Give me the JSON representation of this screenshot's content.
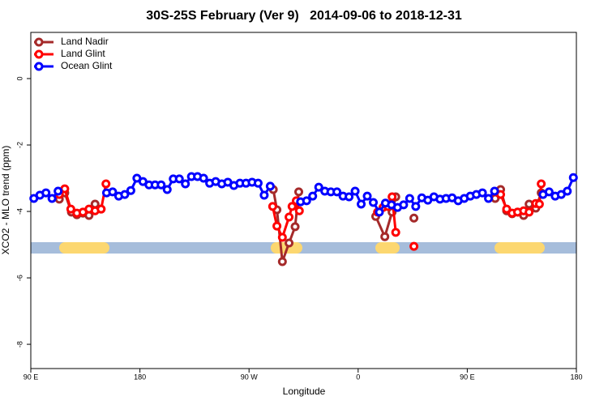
{
  "chart_data": {
    "type": "line",
    "title": "30S-25S February (Ver 9)   2014-09-06 to 2018-12-31",
    "x_label": "Longitude",
    "y_label": "XCO2 - MLO trend (ppm)",
    "xlim": [
      90,
      540
    ],
    "ylim": [
      -8.73,
      1.39
    ],
    "xticks": [
      {
        "value": 90,
        "label": "90 E"
      },
      180,
      {
        "value": 270,
        "label": "90 W"
      },
      {
        "value": 360,
        "label": "0"
      },
      {
        "value": 450,
        "label": "90 E"
      },
      {
        "value": 540,
        "label": "180"
      }
    ],
    "yticks": [
      0,
      -2,
      -4,
      -6,
      -8
    ],
    "legend": "top-left",
    "series": [
      {
        "name": "Land Nadir",
        "color": "#a52a2a",
        "x": [
          113.5,
          118,
          123.5,
          128,
          133,
          138,
          143,
          148,
          null,
          290,
          293,
          297.5,
          303,
          308,
          311,
          null,
          374.5,
          382,
          388,
          391,
          null,
          406,
          null,
          473,
          477.5,
          482.5,
          487,
          491.5,
          496.5,
          501,
          506.5,
          511
        ],
        "values": [
          -3.63,
          -3.44,
          -4.02,
          -4.1,
          -4.05,
          -4.12,
          -3.78,
          -3.93,
          null,
          -3.34,
          -3.95,
          -5.51,
          -4.95,
          -4.46,
          -3.41,
          null,
          -4.15,
          -4.76,
          -4.02,
          -3.56,
          null,
          -4.2,
          null,
          -3.61,
          -3.34,
          -3.98,
          -4.07,
          -4.02,
          -4.12,
          -3.78,
          -3.9,
          -3.44
        ]
      },
      {
        "name": "Land Glint",
        "color": "#ff0000",
        "x": [
          113.5,
          118,
          123,
          128,
          133,
          138,
          143,
          148,
          152,
          null,
          289.5,
          293,
          297.5,
          303,
          305.5,
          309,
          311.5,
          null,
          376,
          380.5,
          384.5,
          388,
          391,
          null,
          406,
          null,
          473,
          477.5,
          482.5,
          487,
          491.5,
          496.5,
          501,
          506.5,
          509.5,
          511
        ],
        "values": [
          -3.49,
          -3.32,
          -3.93,
          -4.05,
          -4.02,
          -3.93,
          -3.98,
          -3.93,
          -3.17,
          null,
          -3.85,
          -4.44,
          -4.78,
          -4.17,
          -3.85,
          -3.68,
          -3.98,
          null,
          -4.02,
          -3.88,
          -3.85,
          -3.56,
          -4.63,
          null,
          -5.05,
          null,
          -3.41,
          -3.49,
          -3.93,
          -4.05,
          -4.02,
          -3.98,
          -4.02,
          -3.76,
          -3.78,
          -3.17
        ]
      },
      {
        "name": "Ocean Glint",
        "color": "#0000ff",
        "x": [
          92.5,
          97.5,
          102.5,
          107.5,
          112.5,
          117.5,
          122.5,
          127.5,
          132.5,
          137.5,
          142.5,
          147.5,
          152.5,
          157.5,
          162.5,
          167.5,
          172.5,
          177.5,
          182.5,
          187.5,
          192.5,
          197.5,
          202.5,
          207.5,
          212.5,
          217.5,
          222.5,
          227.5,
          232.5,
          237.5,
          242.5,
          247.5,
          252.5,
          257.5,
          262.5,
          267.5,
          272.5,
          277.5,
          282.5,
          287.5,
          292.5,
          297.5,
          302.5,
          307.5,
          312.5,
          317.5,
          322.5,
          327.5,
          332.5,
          337.5,
          342.5,
          347.5,
          352.5,
          357.5,
          362.5,
          367.5,
          372.5,
          377.5,
          382.5,
          387.5,
          392.5,
          397.5,
          402.5,
          407.5,
          412.5,
          417.5,
          422.5,
          427.5,
          432.5,
          437.5,
          442.5,
          447.5,
          452.5,
          457.5,
          462.5,
          467.5,
          472.5,
          477.5,
          482.5,
          487.5,
          492.5,
          497.5,
          502.5,
          507.5,
          512.5,
          517.5,
          522.5,
          527.5,
          532.5,
          537.5
        ],
        "values": [
          -3.61,
          -3.51,
          -3.44,
          -3.61,
          -3.39,
          null,
          null,
          null,
          null,
          null,
          null,
          null,
          -3.44,
          -3.41,
          -3.54,
          -3.49,
          -3.37,
          -3.0,
          -3.1,
          -3.2,
          -3.2,
          -3.2,
          -3.34,
          -3.02,
          -3.02,
          -3.17,
          -2.95,
          -2.95,
          -3.0,
          -3.15,
          -3.1,
          -3.17,
          -3.12,
          -3.22,
          -3.15,
          -3.15,
          -3.12,
          -3.15,
          -3.51,
          -3.24,
          null,
          null,
          null,
          null,
          -3.71,
          -3.68,
          -3.54,
          -3.27,
          -3.39,
          -3.41,
          -3.41,
          -3.54,
          -3.56,
          -3.39,
          -3.78,
          -3.54,
          -3.73,
          -4.02,
          -3.75,
          -3.8,
          -3.88,
          -3.8,
          -3.61,
          -3.85,
          -3.59,
          -3.66,
          -3.56,
          -3.63,
          -3.61,
          -3.59,
          -3.68,
          -3.61,
          -3.54,
          -3.49,
          -3.44,
          -3.61,
          -3.39,
          null,
          null,
          null,
          null,
          null,
          null,
          null,
          -3.49,
          -3.41,
          -3.54,
          -3.49,
          -3.39,
          -2.98
        ]
      }
    ]
  }
}
